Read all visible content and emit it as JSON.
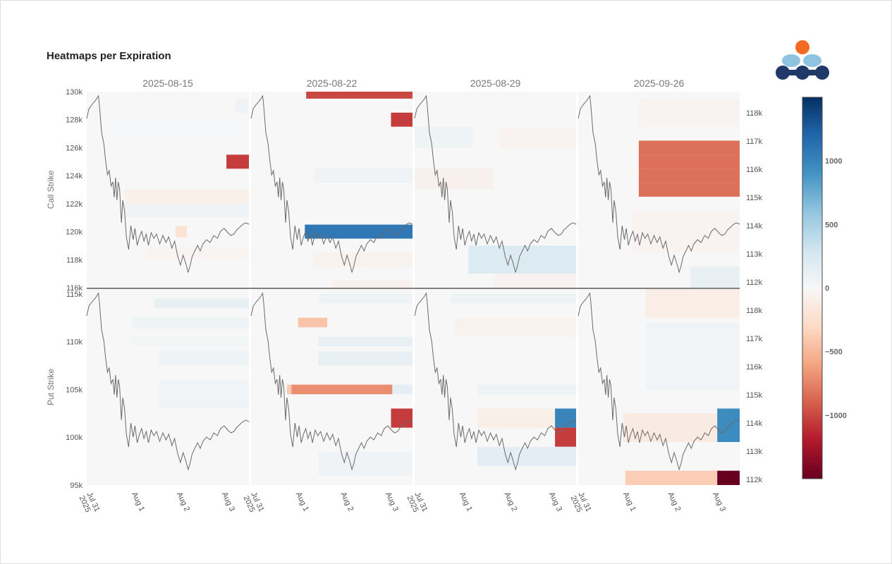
{
  "title": "Heatmaps per Expiration",
  "chart_data": {
    "type": "heatmap",
    "expirations": [
      "2025-08-15",
      "2025-08-22",
      "2025-08-29",
      "2025-09-26"
    ],
    "x_ticks": [
      "Jul 31\n2025",
      "Aug 1",
      "Aug 2",
      "Aug 3"
    ],
    "x_tick_days": [
      0,
      1,
      2,
      3
    ],
    "x_range_days": [
      0,
      3.6
    ],
    "call": {
      "ylabel": "Call Strike",
      "ylim": [
        116000,
        130000
      ],
      "yticks": [
        116000,
        118000,
        120000,
        122000,
        124000,
        126000,
        128000,
        130000
      ],
      "ytick_labels": [
        "116k",
        "118k",
        "120k",
        "122k",
        "124k",
        "126k",
        "128k",
        "130k"
      ]
    },
    "put": {
      "ylabel": "Put Strike",
      "ylim": [
        95000,
        115500
      ],
      "yticks": [
        95000,
        100000,
        105000,
        110000,
        115000
      ],
      "ytick_labels": [
        "95k",
        "100k",
        "105k",
        "110k",
        "115k"
      ]
    },
    "price_axis": {
      "ylim": [
        111850,
        118700
      ],
      "yticks": [
        112000,
        113000,
        114000,
        115000,
        116000,
        117000,
        118000
      ],
      "ytick_labels": [
        "112k",
        "113k",
        "114k",
        "115k",
        "116k",
        "117k",
        "118k"
      ]
    },
    "colorbar": {
      "range": [
        -1500,
        1500
      ],
      "ticks": [
        1000,
        500,
        0,
        -500,
        -1000
      ],
      "tick_labels": [
        "1000",
        "500",
        "0",
        "−500",
        "−1000"
      ],
      "colorscale": [
        "#67001f",
        "#b2182b",
        "#d6604d",
        "#f4a582",
        "#fddbc7",
        "#f7f7f7",
        "#d1e5f0",
        "#92c5de",
        "#4393c3",
        "#2166ac",
        "#053061"
      ]
    },
    "price": [
      [
        0.0,
        117800
      ],
      [
        0.05,
        118150
      ],
      [
        0.12,
        118300
      ],
      [
        0.2,
        118450
      ],
      [
        0.26,
        118600
      ],
      [
        0.28,
        118300
      ],
      [
        0.33,
        117300
      ],
      [
        0.38,
        116900
      ],
      [
        0.42,
        116300
      ],
      [
        0.46,
        115800
      ],
      [
        0.5,
        115950
      ],
      [
        0.54,
        115400
      ],
      [
        0.58,
        115550
      ],
      [
        0.61,
        115000
      ],
      [
        0.64,
        115700
      ],
      [
        0.67,
        114900
      ],
      [
        0.7,
        115550
      ],
      [
        0.73,
        115300
      ],
      [
        0.77,
        114100
      ],
      [
        0.8,
        114900
      ],
      [
        0.84,
        114500
      ],
      [
        0.88,
        113600
      ],
      [
        0.93,
        113150
      ],
      [
        0.98,
        114000
      ],
      [
        1.03,
        113500
      ],
      [
        1.07,
        113900
      ],
      [
        1.12,
        113300
      ],
      [
        1.17,
        113600
      ],
      [
        1.22,
        113800
      ],
      [
        1.27,
        113450
      ],
      [
        1.32,
        113700
      ],
      [
        1.37,
        113300
      ],
      [
        1.43,
        113750
      ],
      [
        1.49,
        113550
      ],
      [
        1.55,
        113700
      ],
      [
        1.62,
        113350
      ],
      [
        1.69,
        113650
      ],
      [
        1.76,
        113400
      ],
      [
        1.82,
        113600
      ],
      [
        1.89,
        113200
      ],
      [
        1.95,
        113450
      ],
      [
        2.02,
        112900
      ],
      [
        2.08,
        112600
      ],
      [
        2.14,
        112950
      ],
      [
        2.2,
        112650
      ],
      [
        2.25,
        112350
      ],
      [
        2.29,
        112550
      ],
      [
        2.34,
        112900
      ],
      [
        2.4,
        113100
      ],
      [
        2.46,
        113300
      ],
      [
        2.52,
        113100
      ],
      [
        2.58,
        113350
      ],
      [
        2.66,
        113500
      ],
      [
        2.74,
        113400
      ],
      [
        2.82,
        113650
      ],
      [
        2.9,
        113550
      ],
      [
        2.97,
        113800
      ],
      [
        3.05,
        113900
      ],
      [
        3.13,
        113750
      ],
      [
        3.2,
        113650
      ],
      [
        3.27,
        113700
      ],
      [
        3.33,
        113850
      ],
      [
        3.4,
        113950
      ],
      [
        3.47,
        114050
      ],
      [
        3.53,
        114100
      ],
      [
        3.6,
        114050
      ]
    ],
    "cells": {
      "call": [
        [
          {
            "x": [
              1.97,
              2.22
            ],
            "y": [
              119600,
              120400
            ],
            "v": -220
          },
          {
            "x": [
              0.84,
              3.6
            ],
            "y": [
              121000,
              122000
            ],
            "v": 60
          },
          {
            "x": [
              0.84,
              3.6
            ],
            "y": [
              122000,
              123000
            ],
            "v": -80
          },
          {
            "x": [
              3.1,
              3.6
            ],
            "y": [
              124500,
              125500
            ],
            "v": -1050
          },
          {
            "x": [
              0.3,
              3.6
            ],
            "y": [
              127000,
              128000
            ],
            "v": 20
          },
          {
            "x": [
              3.3,
              3.6
            ],
            "y": [
              128500,
              129500
            ],
            "v": 60
          },
          {
            "x": [
              1.3,
              3.6
            ],
            "y": [
              118000,
              119000
            ],
            "v": -30
          }
        ],
        [
          {
            "x": [
              1.23,
              3.6
            ],
            "y": [
              129500,
              130000
            ],
            "v": -1000
          },
          {
            "x": [
              3.12,
              3.6
            ],
            "y": [
              127500,
              128500
            ],
            "v": -1050
          },
          {
            "x": [
              1.4,
              3.6
            ],
            "y": [
              123500,
              124500
            ],
            "v": 60
          },
          {
            "x": [
              1.2,
              3.6
            ],
            "y": [
              119500,
              120500
            ],
            "v": 1080
          },
          {
            "x": [
              1.4,
              3.6
            ],
            "y": [
              117500,
              118500
            ],
            "v": -50
          },
          {
            "x": [
              1.8,
              3.6
            ],
            "y": [
              116000,
              116500
            ],
            "v": -70
          }
        ],
        [
          {
            "x": [
              0.0,
              1.3
            ],
            "y": [
              126000,
              127500
            ],
            "v": 70
          },
          {
            "x": [
              1.9,
              3.6
            ],
            "y": [
              126000,
              127500
            ],
            "v": -40
          },
          {
            "x": [
              0.0,
              1.75
            ],
            "y": [
              123000,
              124500
            ],
            "v": -70
          },
          {
            "x": [
              1.2,
              3.6
            ],
            "y": [
              117000,
              119000
            ],
            "v": 210
          },
          {
            "x": [
              1.75,
              3.6
            ],
            "y": [
              116000,
              117000
            ],
            "v": -40
          }
        ],
        [
          {
            "x": [
              1.35,
              3.6
            ],
            "y": [
              125500,
              126500
            ],
            "v": -830
          },
          {
            "x": [
              1.35,
              3.6
            ],
            "y": [
              124500,
              125500
            ],
            "v": -830
          },
          {
            "x": [
              1.35,
              3.6
            ],
            "y": [
              123500,
              124500
            ],
            "v": -830
          },
          {
            "x": [
              1.35,
              3.6
            ],
            "y": [
              122500,
              123500
            ],
            "v": -830
          },
          {
            "x": [
              1.35,
              3.6
            ],
            "y": [
              127500,
              129500
            ],
            "v": -40
          },
          {
            "x": [
              1.2,
              3.6
            ],
            "y": [
              118500,
              121500
            ],
            "v": -40
          },
          {
            "x": [
              2.5,
              3.6
            ],
            "y": [
              116000,
              117500
            ],
            "v": 110
          }
        ]
      ],
      "put": [
        [
          {
            "x": [
              1.5,
              3.6
            ],
            "y": [
              113500,
              114500
            ],
            "v": 110
          },
          {
            "x": [
              1.0,
              3.6
            ],
            "y": [
              111500,
              112500
            ],
            "v": 70
          },
          {
            "x": [
              1.6,
              3.6
            ],
            "y": [
              107500,
              109000
            ],
            "v": 70
          },
          {
            "x": [
              1.6,
              3.6
            ],
            "y": [
              103000,
              106000
            ],
            "v": 50
          },
          {
            "x": [
              1.0,
              3.6
            ],
            "y": [
              109500,
              110500
            ],
            "v": 40
          }
        ],
        [
          {
            "x": [
              1.05,
              1.7
            ],
            "y": [
              111500,
              112500
            ],
            "v": -430
          },
          {
            "x": [
              1.5,
              3.6
            ],
            "y": [
              109500,
              110500
            ],
            "v": 120
          },
          {
            "x": [
              1.5,
              3.6
            ],
            "y": [
              107500,
              109000
            ],
            "v": 120
          },
          {
            "x": [
              0.9,
              3.15
            ],
            "y": [
              104500,
              105500
            ],
            "v": -700
          },
          {
            "x": [
              0.8,
              0.9
            ],
            "y": [
              104500,
              105500
            ],
            "v": -400
          },
          {
            "x": [
              3.15,
              3.6
            ],
            "y": [
              104500,
              105500
            ],
            "v": 150
          },
          {
            "x": [
              3.12,
              3.6
            ],
            "y": [
              101000,
              103000
            ],
            "v": -1050
          },
          {
            "x": [
              1.5,
              3.6
            ],
            "y": [
              96000,
              98500
            ],
            "v": 60
          },
          {
            "x": [
              1.5,
              3.6
            ],
            "y": [
              114000,
              115000
            ],
            "v": 70
          }
        ],
        [
          {
            "x": [
              0.8,
              3.6
            ],
            "y": [
              114000,
              115000
            ],
            "v": 80
          },
          {
            "x": [
              0.9,
              3.6
            ],
            "y": [
              110500,
              112500
            ],
            "v": -50
          },
          {
            "x": [
              1.4,
              3.6
            ],
            "y": [
              104500,
              105500
            ],
            "v": 70
          },
          {
            "x": [
              1.4,
              3.6
            ],
            "y": [
              101000,
              103000
            ],
            "v": -90
          },
          {
            "x": [
              3.13,
              3.6
            ],
            "y": [
              101000,
              103000
            ],
            "v": 1000
          },
          {
            "x": [
              3.13,
              3.6
            ],
            "y": [
              99000,
              101000
            ],
            "v": -1050
          },
          {
            "x": [
              1.4,
              3.6
            ],
            "y": [
              97000,
              99000
            ],
            "v": 160
          }
        ],
        [
          {
            "x": [
              1.5,
              3.6
            ],
            "y": [
              112500,
              115500
            ],
            "v": -110
          },
          {
            "x": [
              1.5,
              3.6
            ],
            "y": [
              105000,
              112000
            ],
            "v": 50
          },
          {
            "x": [
              1.0,
              3.1
            ],
            "y": [
              99500,
              102500
            ],
            "v": -130
          },
          {
            "x": [
              3.1,
              3.6
            ],
            "y": [
              99500,
              103000
            ],
            "v": 950
          },
          {
            "x": [
              1.05,
              3.1
            ],
            "y": [
              95000,
              96500
            ],
            "v": -380
          },
          {
            "x": [
              3.1,
              3.6
            ],
            "y": [
              95000,
              96500
            ],
            "v": -1500
          }
        ]
      ]
    }
  }
}
